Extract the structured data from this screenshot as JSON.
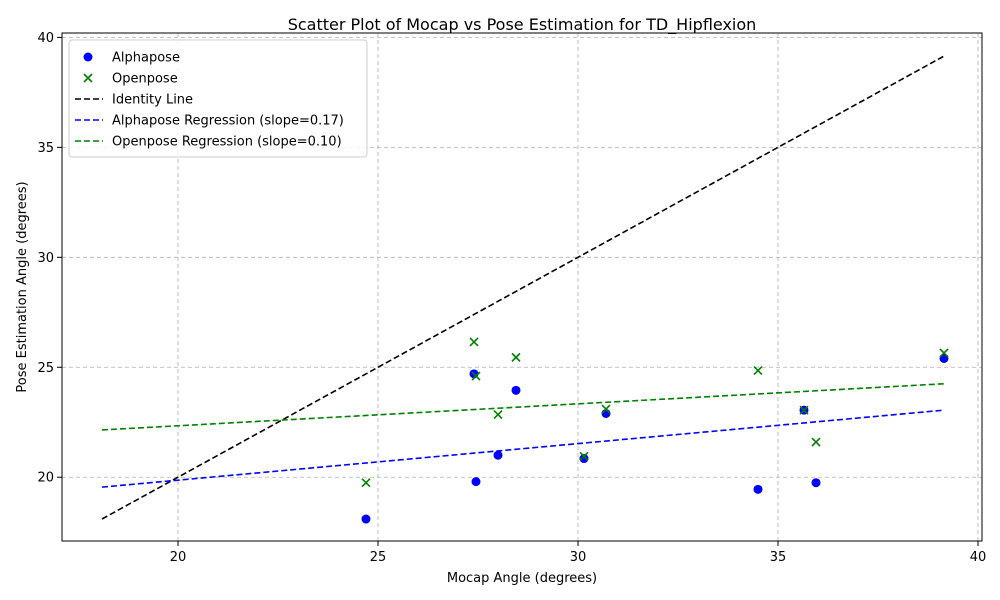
{
  "chart_data": {
    "type": "scatter",
    "title": "Scatter Plot of Mocap vs Pose Estimation for TD_Hipflexion",
    "xlabel": "Mocap Angle (degrees)",
    "ylabel": "Pose Estimation Angle (degrees)",
    "xlim": [
      17.1,
      40.1
    ],
    "ylim": [
      17.1,
      40.2
    ],
    "xticks": [
      20,
      25,
      30,
      35,
      40
    ],
    "yticks": [
      20,
      25,
      30,
      35,
      40
    ],
    "grid": true,
    "legend_position": "top-left",
    "series": [
      {
        "name": "Alphapose",
        "kind": "points",
        "marker": "circle",
        "color": "#0000ff",
        "points": [
          [
            24.7,
            18.1
          ],
          [
            27.4,
            24.7
          ],
          [
            27.45,
            19.8
          ],
          [
            28.0,
            21.0
          ],
          [
            28.45,
            23.95
          ],
          [
            30.15,
            20.85
          ],
          [
            30.7,
            22.9
          ],
          [
            34.5,
            19.45
          ],
          [
            35.65,
            23.05
          ],
          [
            35.95,
            19.75
          ],
          [
            39.15,
            25.4
          ]
        ]
      },
      {
        "name": "Openpose",
        "kind": "points",
        "marker": "x",
        "color": "#008000",
        "points": [
          [
            24.7,
            19.75
          ],
          [
            27.4,
            26.15
          ],
          [
            27.45,
            24.6
          ],
          [
            28.0,
            22.85
          ],
          [
            28.45,
            25.45
          ],
          [
            30.15,
            20.95
          ],
          [
            30.7,
            23.1
          ],
          [
            34.5,
            24.85
          ],
          [
            35.65,
            23.05
          ],
          [
            35.95,
            21.6
          ],
          [
            39.15,
            25.65
          ]
        ]
      },
      {
        "name": "Identity Line",
        "kind": "line",
        "dash": true,
        "color": "#000000",
        "points": [
          [
            18.1,
            18.1
          ],
          [
            39.15,
            39.15
          ]
        ]
      },
      {
        "name": "Alphapose Regression (slope=0.17)",
        "kind": "line",
        "dash": true,
        "color": "#0000ff",
        "points": [
          [
            18.1,
            19.55
          ],
          [
            39.15,
            23.05
          ]
        ]
      },
      {
        "name": "Openpose Regression (slope=0.10)",
        "kind": "line",
        "dash": true,
        "color": "#008000",
        "points": [
          [
            18.1,
            22.15
          ],
          [
            39.15,
            24.25
          ]
        ]
      }
    ]
  }
}
